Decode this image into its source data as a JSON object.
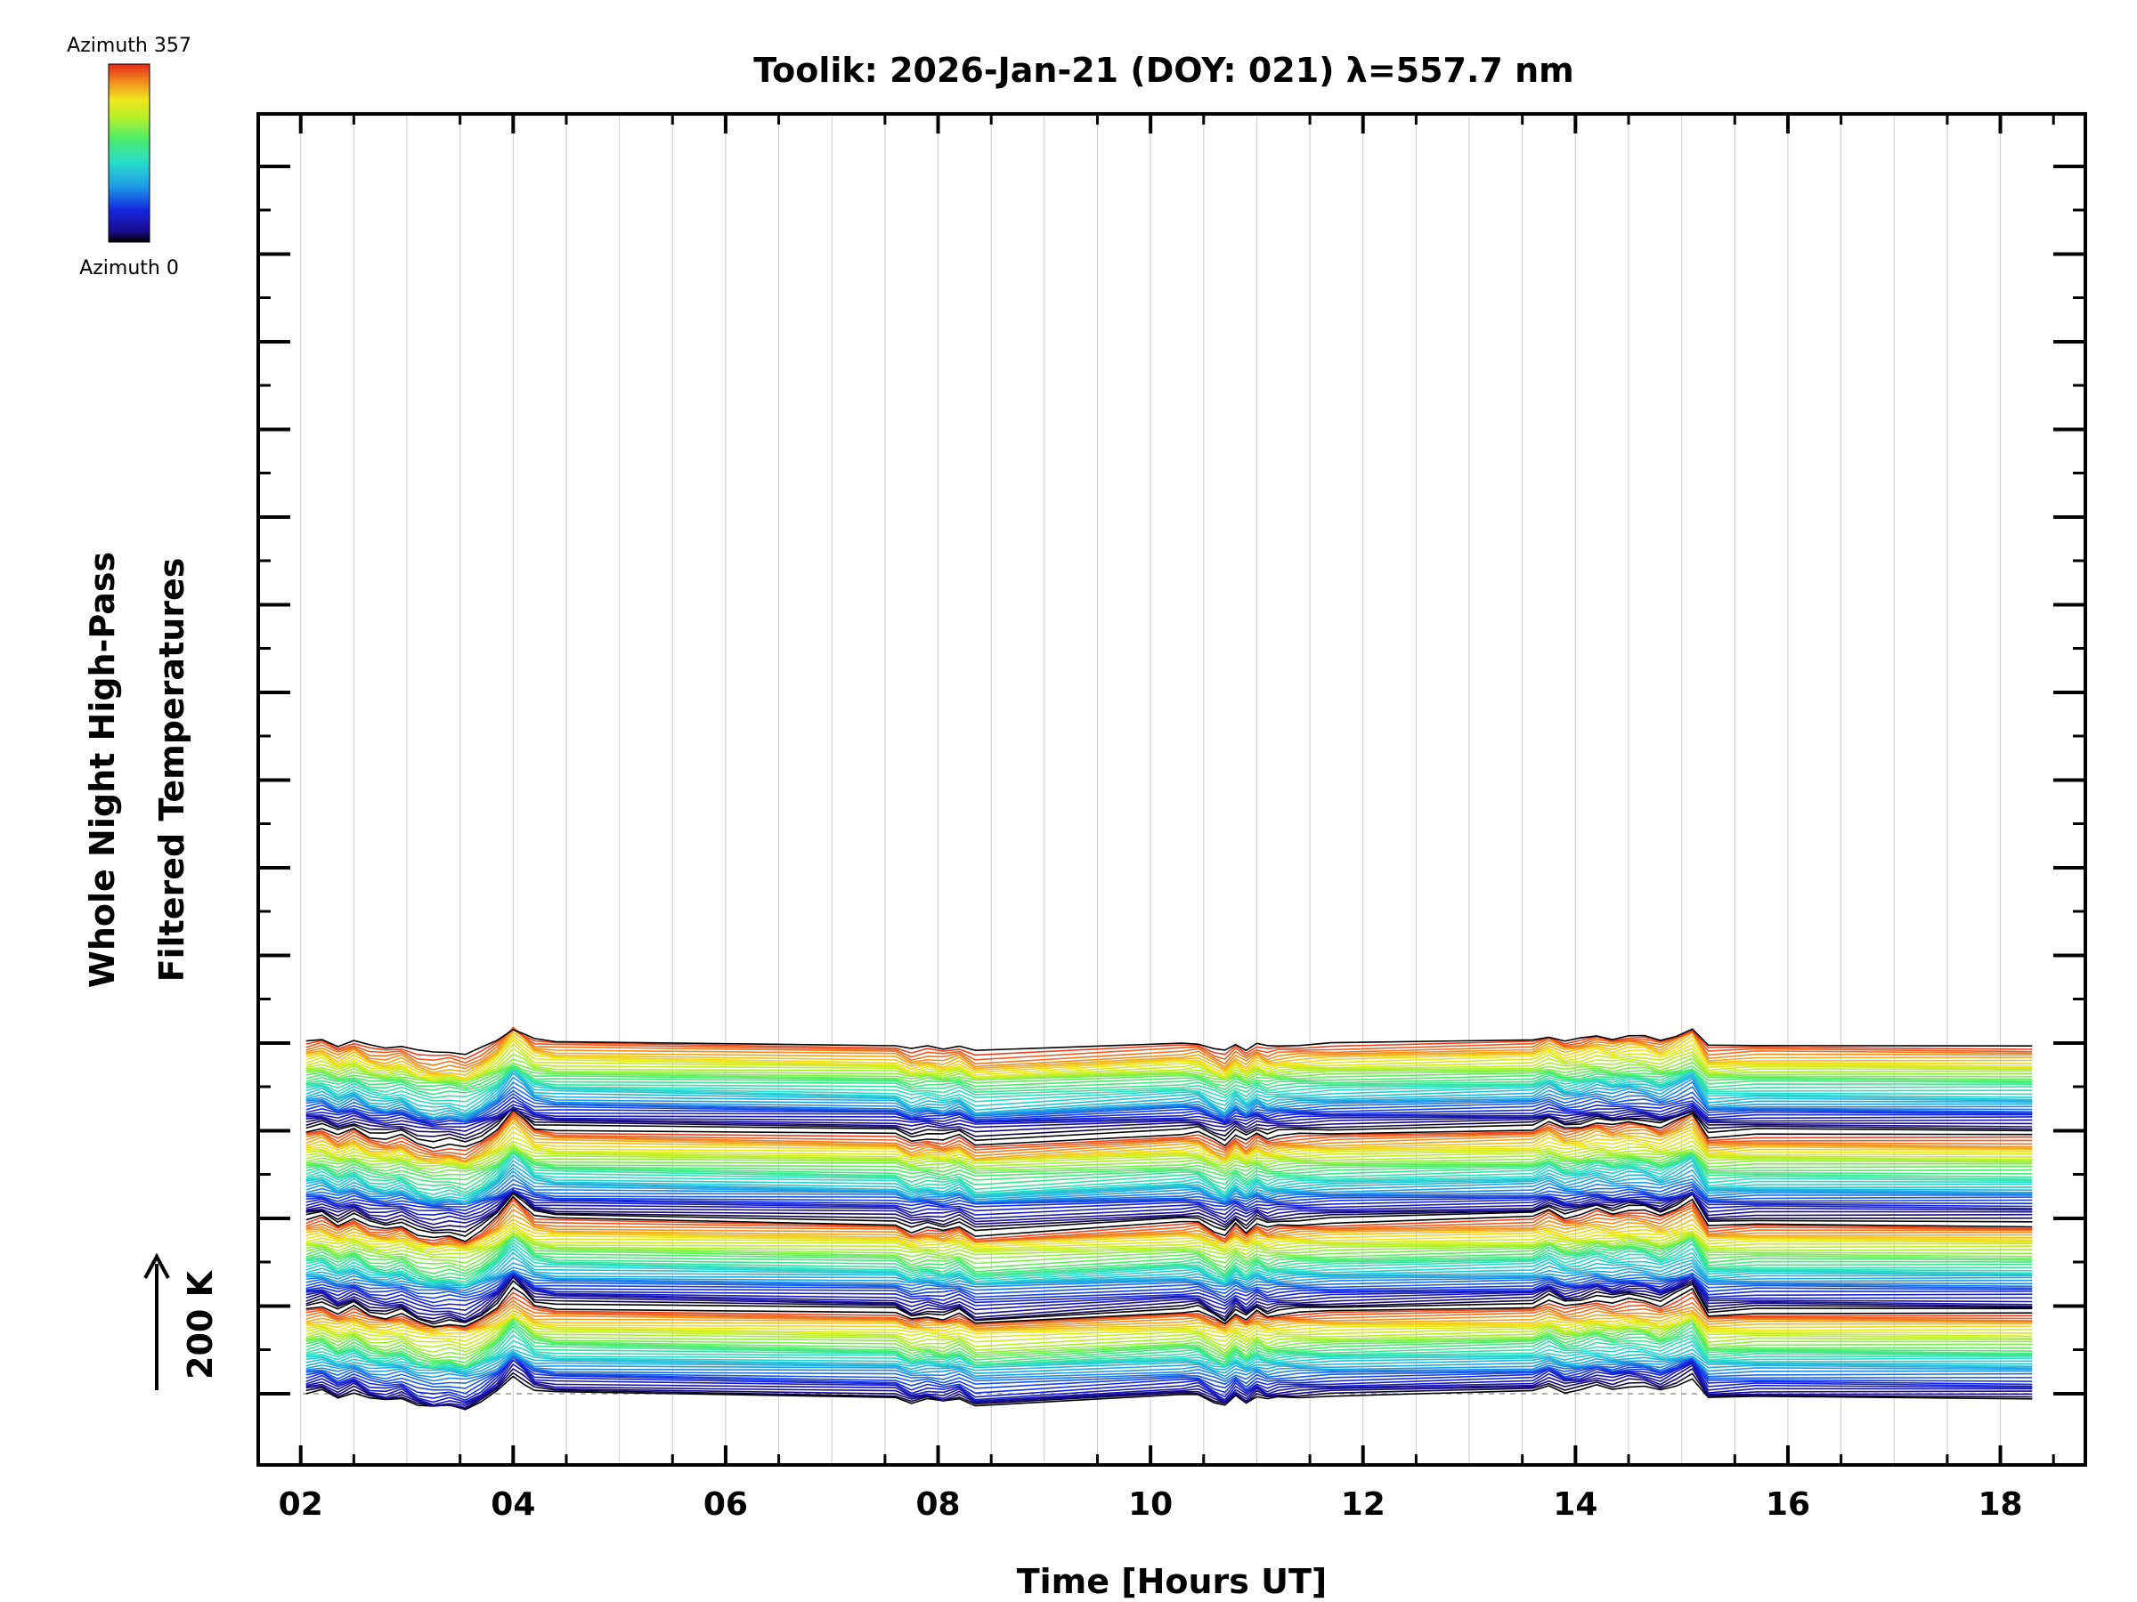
{
  "chart_data": {
    "type": "line",
    "title": "Toolik: 2026-Jan-21 (DOY: 021) λ=557.7 nm",
    "xlabel": "Time [Hours UT]",
    "ylabel_line1": "Whole Night High-Pass",
    "ylabel_line2": "Filtered Temperatures",
    "scale_label": "200 K",
    "xlim": [
      1.6,
      18.8
    ],
    "x_ticks": [
      2,
      4,
      6,
      8,
      10,
      12,
      14,
      16,
      18
    ],
    "x_tick_labels": [
      "02",
      "04",
      "06",
      "08",
      "10",
      "12",
      "14",
      "16",
      "18"
    ],
    "colorbar": {
      "label_top": "Azimuth 357",
      "label_bottom": "Azimuth 0",
      "min": 0,
      "max": 357,
      "colormap": "rainbow"
    },
    "sample_times": [
      2.05,
      2.2,
      2.35,
      2.5,
      2.65,
      2.8,
      2.95,
      3.1,
      3.25,
      3.4,
      3.55,
      3.7,
      3.85,
      4.0,
      4.1,
      4.2,
      4.4,
      7.6,
      7.75,
      7.9,
      8.05,
      8.2,
      8.35,
      10.3,
      10.45,
      10.6,
      10.7,
      10.8,
      10.9,
      11.0,
      11.1,
      11.2,
      11.4,
      11.7,
      13.6,
      13.75,
      13.9,
      14.05,
      14.2,
      14.35,
      14.5,
      14.65,
      14.8,
      14.95,
      15.1,
      15.25,
      15.7,
      18.3
    ],
    "profile_temperatures_K": [
      0,
      15,
      -20,
      10,
      -25,
      -35,
      -20,
      -55,
      -70,
      -60,
      -75,
      -40,
      10,
      90,
      55,
      15,
      5,
      -15,
      -45,
      -30,
      -40,
      -20,
      -60,
      -10,
      -5,
      -40,
      -60,
      -15,
      -45,
      -10,
      -30,
      -20,
      -15,
      -10,
      10,
      40,
      10,
      20,
      40,
      25,
      40,
      35,
      15,
      45,
      80,
      -25,
      -15,
      -20
    ],
    "profile_scale_min_K": 0.55,
    "profile_scale_max_K": 1.2,
    "series_count": 156,
    "groups": 4,
    "series_per_group": 39,
    "group_offset_K": 400,
    "series_spacing_K": 10,
    "azimuth_step_deg": 9.4
  }
}
